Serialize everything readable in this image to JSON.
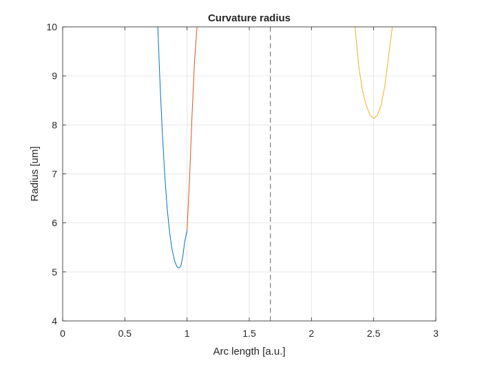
{
  "chart_data": {
    "type": "line",
    "title": "Curvature radius",
    "xlabel": "Arc length [a.u.]",
    "ylabel": "Radius [um]",
    "xlim": [
      0,
      3
    ],
    "ylim": [
      4,
      10
    ],
    "xticks": [
      0,
      0.5,
      1,
      1.5,
      2,
      2.5,
      3
    ],
    "yticks": [
      4,
      5,
      6,
      7,
      8,
      9,
      10
    ],
    "xtick_labels": [
      "0",
      "0.5",
      "1",
      "1.5",
      "2",
      "2.5",
      "3"
    ],
    "ytick_labels": [
      "4",
      "5",
      "6",
      "7",
      "8",
      "9",
      "10"
    ],
    "grid": true,
    "colors": {
      "series_1": "#0072BD",
      "series_2": "#D95319",
      "series_3": "#EDB120",
      "grid": "#e6e6e6",
      "axes": "#262626",
      "reference_line": "#606060"
    },
    "series": [
      {
        "x": [
          0.765,
          0.78,
          0.8,
          0.82,
          0.84,
          0.86,
          0.88,
          0.9,
          0.92,
          0.935,
          0.95,
          0.965,
          0.98,
          1.0
        ],
        "y": [
          10.0,
          9.0,
          7.9,
          7.0,
          6.3,
          5.8,
          5.45,
          5.22,
          5.1,
          5.08,
          5.12,
          5.3,
          5.6,
          5.85
        ]
      },
      {
        "x": [
          1.0,
          1.02,
          1.04,
          1.06,
          1.08
        ],
        "y": [
          5.85,
          6.9,
          8.2,
          9.3,
          10.0
        ]
      },
      {
        "x": [
          2.35,
          2.38,
          2.41,
          2.44,
          2.47,
          2.5,
          2.53,
          2.56,
          2.59,
          2.62,
          2.65
        ],
        "y": [
          10.0,
          9.2,
          8.7,
          8.4,
          8.2,
          8.13,
          8.2,
          8.4,
          8.8,
          9.4,
          10.0
        ]
      }
    ],
    "reference_lines": [
      {
        "orientation": "vertical",
        "x": 1.67,
        "style": "dashed"
      }
    ]
  }
}
